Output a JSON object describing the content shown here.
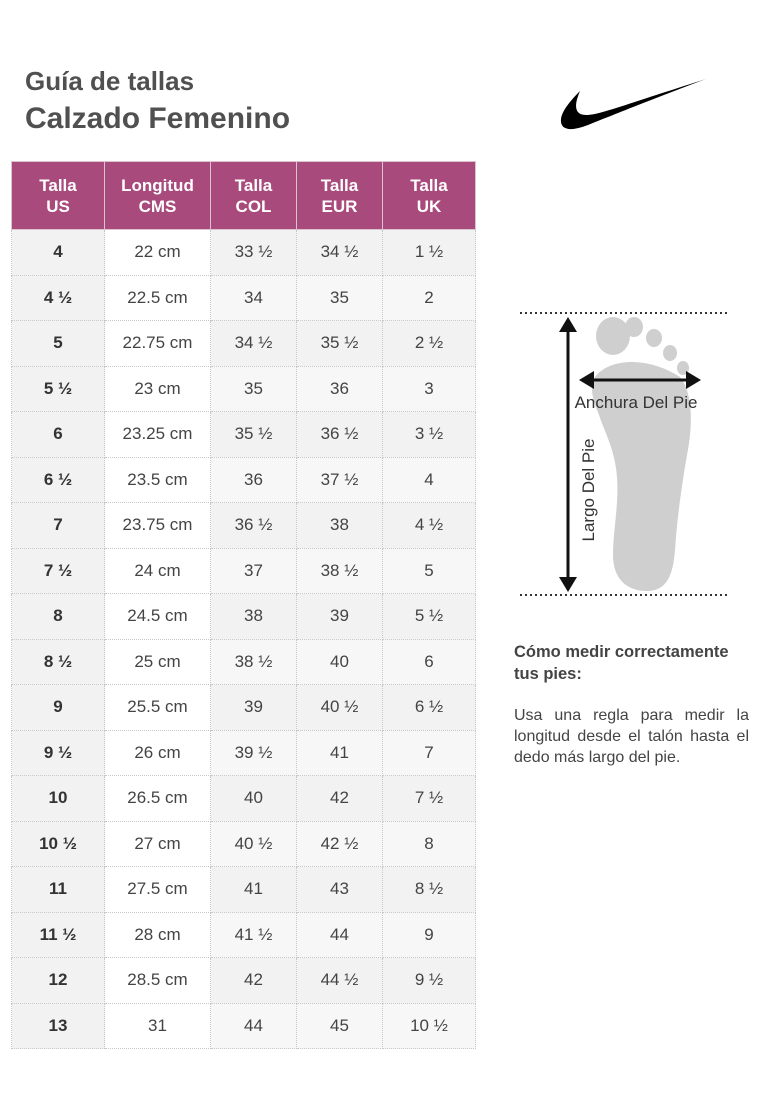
{
  "header": {
    "title_line1": "Guía de tallas",
    "title_line2": "Calzado Femenino",
    "logo_icon": "swoosh-icon"
  },
  "table": {
    "header_color": "#a84a7c",
    "columns": [
      {
        "line1": "Talla",
        "line2": "US"
      },
      {
        "line1": "Longitud",
        "line2": "CMS"
      },
      {
        "line1": "Talla",
        "line2": "COL"
      },
      {
        "line1": "Talla",
        "line2": "EUR"
      },
      {
        "line1": "Talla",
        "line2": "UK"
      }
    ],
    "rows": [
      [
        "4",
        "22 cm",
        "33 ½",
        "34 ½",
        "1 ½"
      ],
      [
        "4 ½",
        "22.5 cm",
        "34",
        "35",
        "2"
      ],
      [
        "5",
        "22.75 cm",
        "34 ½",
        "35 ½",
        "2 ½"
      ],
      [
        "5 ½",
        "23 cm",
        "35",
        "36",
        "3"
      ],
      [
        "6",
        "23.25 cm",
        "35 ½",
        "36 ½",
        "3 ½"
      ],
      [
        "6 ½",
        "23.5 cm",
        "36",
        "37 ½",
        "4"
      ],
      [
        "7",
        "23.75 cm",
        "36 ½",
        "38",
        "4 ½"
      ],
      [
        "7 ½",
        "24 cm",
        "37",
        "38 ½",
        "5"
      ],
      [
        "8",
        "24.5 cm",
        "38",
        "39",
        "5 ½"
      ],
      [
        "8 ½",
        "25 cm",
        "38 ½",
        "40",
        "6"
      ],
      [
        "9",
        "25.5 cm",
        "39",
        "40 ½",
        "6 ½"
      ],
      [
        "9 ½",
        "26 cm",
        "39 ½",
        "41",
        "7"
      ],
      [
        "10",
        "26.5 cm",
        "40",
        "42",
        "7 ½"
      ],
      [
        "10 ½",
        "27 cm",
        "40 ½",
        "42 ½",
        "8"
      ],
      [
        "11",
        "27.5 cm",
        "41",
        "43",
        "8 ½"
      ],
      [
        "11 ½",
        "28 cm",
        "41 ½",
        "44",
        "9"
      ],
      [
        "12",
        "28.5 cm",
        "42",
        "44 ½",
        "9 ½"
      ],
      [
        "13",
        "31",
        "44",
        "45",
        "10 ½"
      ]
    ]
  },
  "diagram": {
    "width_label": "Anchura Del Pie",
    "length_label": "Largo Del Pie",
    "foot_icon": "footprint-icon"
  },
  "help": {
    "title": "Cómo medir correctamente tus pies:",
    "text": "Usa una regla para medir la longitud desde el talón hasta el dedo más largo del pie."
  }
}
